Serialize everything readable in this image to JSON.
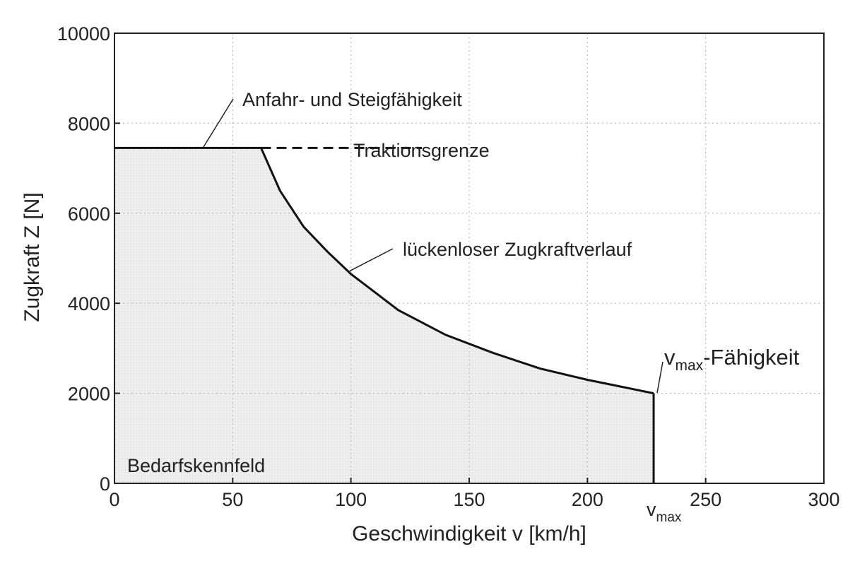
{
  "chart_data": {
    "type": "area",
    "xlabel": "Geschwindigkeit v [km/h]",
    "ylabel": "Zugkraft Z [N]",
    "xlim": [
      0,
      300
    ],
    "ylim": [
      0,
      10000
    ],
    "x_ticks": [
      0,
      50,
      100,
      150,
      200,
      250,
      300
    ],
    "y_ticks": [
      0,
      2000,
      4000,
      6000,
      8000,
      10000
    ],
    "x_tick_labels": [
      "0",
      "50",
      "100",
      "150",
      "200",
      "250",
      "300"
    ],
    "y_tick_labels": [
      "0",
      "2000",
      "4000",
      "6000",
      "8000",
      "10000"
    ],
    "grid": true,
    "series": [
      {
        "x": [
          0,
          62,
          70,
          80,
          90,
          100,
          120,
          140,
          160,
          180,
          200,
          228
        ],
        "y": [
          7450,
          7450,
          6500,
          5700,
          5150,
          4650,
          3850,
          3300,
          2900,
          2550,
          2300,
          2000
        ]
      }
    ],
    "traction_limit": {
      "x": [
        62,
        130
      ],
      "y": 7450
    },
    "vmax": 228,
    "vmax_label": {
      "main": "v",
      "sub": "max"
    },
    "annotations": {
      "start_climb": "Anfahr- und Steigfähigkeit",
      "traction_limit": "Traktionsgrenze",
      "continuous": "lückenloser Zugkraftverlauf",
      "vmax_capability_main": "v",
      "vmax_capability_sub": "max",
      "vmax_capability_rest": "-Fähigkeit",
      "demand_field": "Bedarfskennfeld"
    },
    "colors": {
      "fill": "#ececec",
      "line": "#111111",
      "grid": "#bdbdbd"
    }
  }
}
